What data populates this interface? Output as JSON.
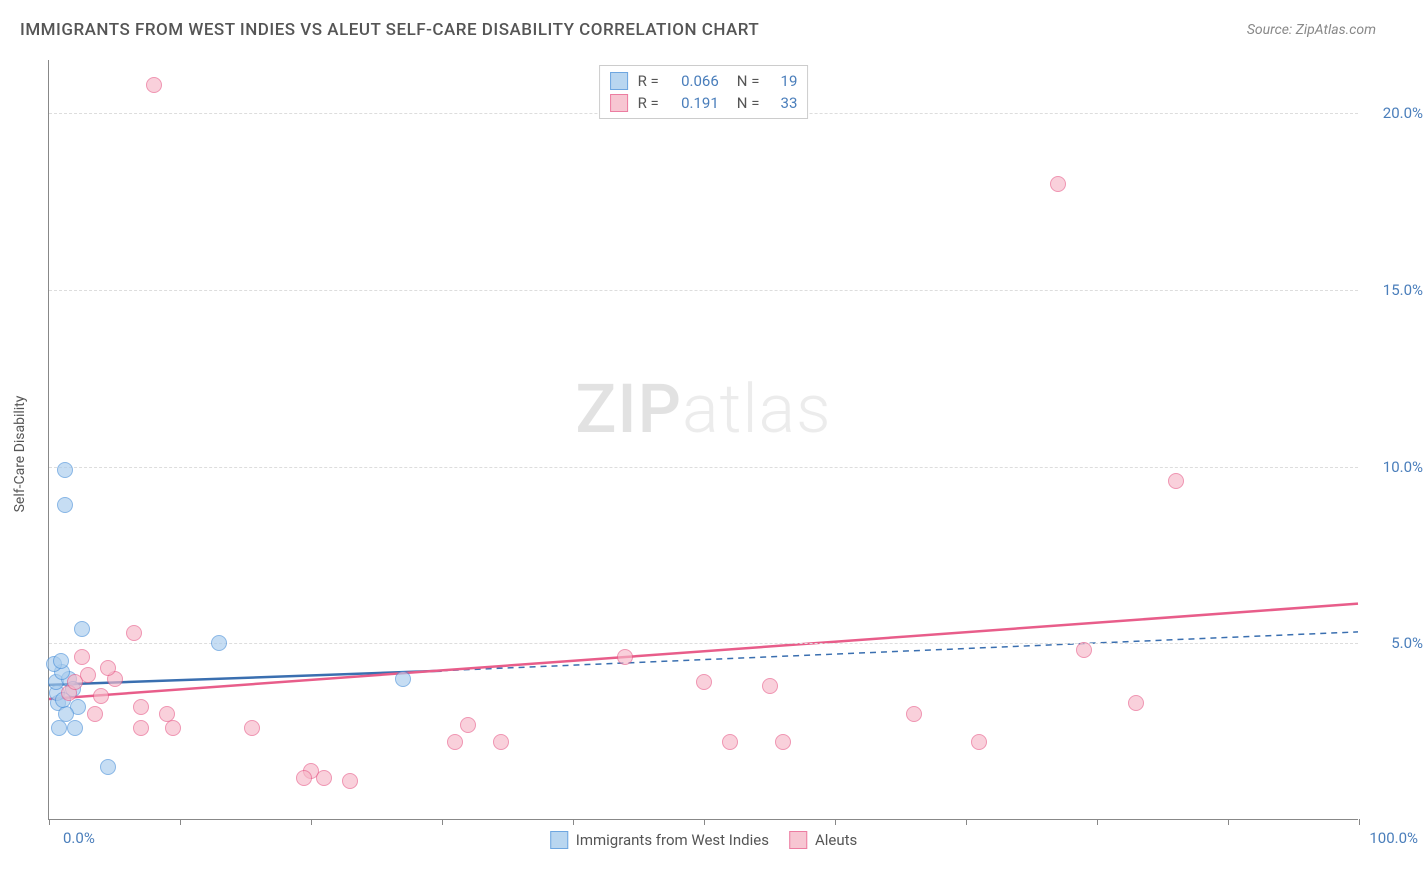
{
  "title": "IMMIGRANTS FROM WEST INDIES VS ALEUT SELF-CARE DISABILITY CORRELATION CHART",
  "source": "Source: ZipAtlas.com",
  "watermark_zip": "ZIP",
  "watermark_atlas": "atlas",
  "y_axis_label": "Self-Care Disability",
  "chart": {
    "type": "scatter",
    "background_color": "#ffffff",
    "grid_color": "#dddddd",
    "axis_color": "#888888",
    "xlim": [
      0,
      100
    ],
    "ylim": [
      0,
      21.5
    ],
    "x_ticks": [
      0,
      10,
      20,
      30,
      40,
      50,
      60,
      70,
      80,
      90,
      100
    ],
    "x_tick_labels_shown": {
      "0": "0.0%",
      "100": "100.0%"
    },
    "y_ticks": [
      5,
      10,
      15,
      20
    ],
    "y_tick_labels": {
      "5": "5.0%",
      "10": "10.0%",
      "15": "15.0%",
      "20": "20.0%"
    },
    "series": [
      {
        "name": "Immigrants from West Indies",
        "fill_color": "#a8cced",
        "fill_opacity": 0.45,
        "stroke_color": "#4a90d9",
        "R": "0.066",
        "N": "19",
        "trend": {
          "solid": {
            "x1": 0,
            "y1": 3.8,
            "x2": 30,
            "y2": 4.2
          },
          "dashed": {
            "x1": 30,
            "y1": 4.2,
            "x2": 100,
            "y2": 5.3
          },
          "color": "#3a6fb0",
          "width": 2.5
        },
        "points": [
          {
            "x": 1.2,
            "y": 9.9
          },
          {
            "x": 1.2,
            "y": 8.9
          },
          {
            "x": 2.5,
            "y": 5.4
          },
          {
            "x": 13.0,
            "y": 5.0
          },
          {
            "x": 0.7,
            "y": 3.3
          },
          {
            "x": 0.6,
            "y": 3.6
          },
          {
            "x": 0.5,
            "y": 3.9
          },
          {
            "x": 2.0,
            "y": 2.6
          },
          {
            "x": 1.5,
            "y": 4.0
          },
          {
            "x": 1.0,
            "y": 4.2
          },
          {
            "x": 0.8,
            "y": 2.6
          },
          {
            "x": 4.5,
            "y": 1.5
          },
          {
            "x": 0.4,
            "y": 4.4
          },
          {
            "x": 1.8,
            "y": 3.7
          },
          {
            "x": 2.2,
            "y": 3.2
          },
          {
            "x": 27.0,
            "y": 4.0
          },
          {
            "x": 1.3,
            "y": 3.0
          },
          {
            "x": 0.9,
            "y": 4.5
          },
          {
            "x": 1.1,
            "y": 3.4
          }
        ]
      },
      {
        "name": "Aleuts",
        "fill_color": "#f6b8c8",
        "fill_opacity": 0.45,
        "stroke_color": "#e85d8a",
        "R": "0.191",
        "N": "33",
        "trend": {
          "solid": {
            "x1": 0,
            "y1": 3.4,
            "x2": 100,
            "y2": 6.1
          },
          "color": "#e85d8a",
          "width": 2.5
        },
        "points": [
          {
            "x": 8.0,
            "y": 20.8
          },
          {
            "x": 77.0,
            "y": 18.0
          },
          {
            "x": 86.0,
            "y": 9.6
          },
          {
            "x": 6.5,
            "y": 5.3
          },
          {
            "x": 44.0,
            "y": 4.6
          },
          {
            "x": 79.0,
            "y": 4.8
          },
          {
            "x": 50.0,
            "y": 3.9
          },
          {
            "x": 55.0,
            "y": 3.8
          },
          {
            "x": 83.0,
            "y": 3.3
          },
          {
            "x": 66.0,
            "y": 3.0
          },
          {
            "x": 52.0,
            "y": 2.2
          },
          {
            "x": 56.0,
            "y": 2.2
          },
          {
            "x": 71.0,
            "y": 2.2
          },
          {
            "x": 32.0,
            "y": 2.7
          },
          {
            "x": 31.0,
            "y": 2.2
          },
          {
            "x": 34.5,
            "y": 2.2
          },
          {
            "x": 23.0,
            "y": 1.1
          },
          {
            "x": 20.0,
            "y": 1.4
          },
          {
            "x": 21.0,
            "y": 1.2
          },
          {
            "x": 19.5,
            "y": 1.2
          },
          {
            "x": 15.5,
            "y": 2.6
          },
          {
            "x": 9.0,
            "y": 3.0
          },
          {
            "x": 9.5,
            "y": 2.6
          },
          {
            "x": 7.0,
            "y": 2.6
          },
          {
            "x": 7.0,
            "y": 3.2
          },
          {
            "x": 5.0,
            "y": 4.0
          },
          {
            "x": 4.0,
            "y": 3.5
          },
          {
            "x": 3.0,
            "y": 4.1
          },
          {
            "x": 4.5,
            "y": 4.3
          },
          {
            "x": 2.5,
            "y": 4.6
          },
          {
            "x": 1.5,
            "y": 3.6
          },
          {
            "x": 2.0,
            "y": 3.9
          },
          {
            "x": 3.5,
            "y": 3.0
          }
        ]
      }
    ]
  },
  "legend_top": {
    "r_label": "R =",
    "n_label": "N ="
  },
  "legend_bottom": [
    {
      "label": "Immigrants from West Indies",
      "fill": "#a8cced",
      "stroke": "#4a90d9"
    },
    {
      "label": "Aleuts",
      "fill": "#f6b8c8",
      "stroke": "#e85d8a"
    }
  ],
  "label_color": "#4a7ebb",
  "title_fontsize": 17,
  "label_fontsize": 15,
  "marker_size": 16
}
